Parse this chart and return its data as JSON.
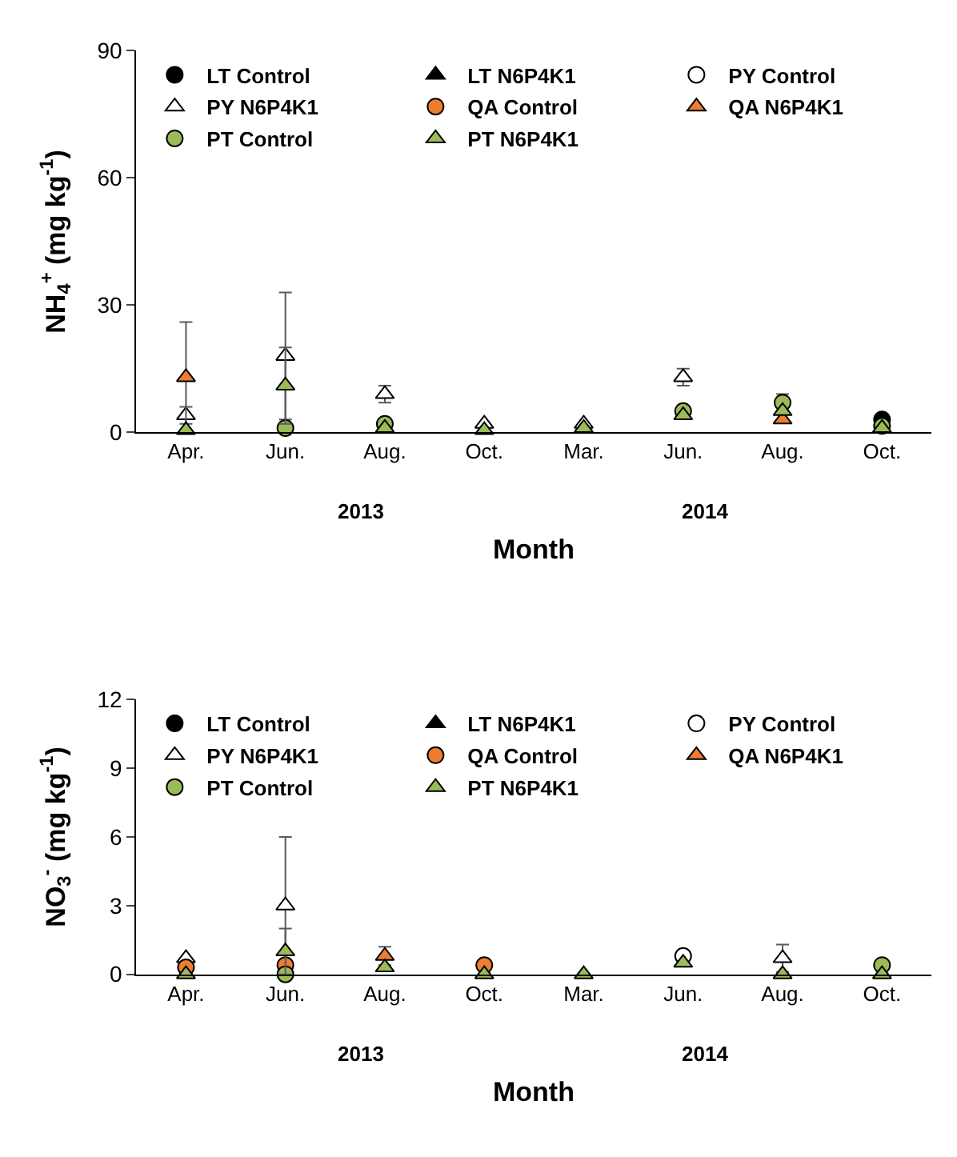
{
  "chart_data": [
    {
      "type": "scatter",
      "ylabel": "NH$_{4}$$^{+}$ (mg kg$^{-1}$)",
      "xlabel": "Month",
      "categories": [
        "Apr.",
        "Jun.",
        "Aug.",
        "Oct.",
        "Mar.",
        "Jun.",
        "Aug.",
        "Oct."
      ],
      "annotations": [
        "2013",
        "2014"
      ],
      "ylim": [
        0,
        90
      ],
      "yticks": [
        0,
        30,
        60,
        90
      ],
      "legend": "top",
      "series": [
        {
          "name": "LT Control",
          "color": "#000000",
          "marker": "circle",
          "values": [
            null,
            null,
            null,
            null,
            null,
            null,
            null,
            3
          ]
        },
        {
          "name": "LT N6P4K1",
          "color": "#000000",
          "marker": "triangle",
          "values": [
            null,
            null,
            null,
            null,
            null,
            null,
            null,
            null
          ]
        },
        {
          "name": "PY Control",
          "color": "#ffffff",
          "marker": "circle",
          "values": [
            null,
            null,
            null,
            null,
            null,
            null,
            null,
            null
          ]
        },
        {
          "name": "PY N6P4K1",
          "color": "#ffffff",
          "marker": "triangle",
          "values": [
            4,
            18,
            9,
            2,
            2,
            13,
            null,
            null
          ],
          "errors": [
            2,
            15,
            2,
            null,
            null,
            2,
            null,
            null
          ]
        },
        {
          "name": "QA Control",
          "color": "#ed7d31",
          "marker": "circle",
          "values": [
            null,
            null,
            null,
            null,
            null,
            null,
            null,
            null
          ]
        },
        {
          "name": "QA N6P4K1",
          "color": "#ed7d31",
          "marker": "triangle",
          "values": [
            13,
            null,
            null,
            null,
            null,
            null,
            3,
            null
          ],
          "errors": [
            13,
            null,
            null,
            null,
            null,
            null,
            null,
            null
          ]
        },
        {
          "name": "PT Control",
          "color": "#9bbb59",
          "marker": "circle",
          "values": [
            null,
            1,
            2,
            null,
            null,
            5,
            7,
            1.5
          ],
          "errors": [
            null,
            null,
            null,
            null,
            null,
            null,
            2,
            null
          ]
        },
        {
          "name": "PT N6P4K1",
          "color": "#9bbb59",
          "marker": "triangle",
          "values": [
            0.5,
            11,
            1,
            0.5,
            1,
            4,
            5,
            1
          ],
          "errors": [
            null,
            9,
            null,
            null,
            null,
            null,
            null,
            null
          ]
        }
      ]
    },
    {
      "type": "scatter",
      "ylabel": "NO$_{3}$$^{-}$ (mg kg$^{-1}$)",
      "xlabel": "Month",
      "categories": [
        "Apr.",
        "Jun.",
        "Aug.",
        "Oct.",
        "Mar.",
        "Jun.",
        "Aug.",
        "Oct."
      ],
      "annotations": [
        "2013",
        "2014"
      ],
      "ylim": [
        0,
        12
      ],
      "yticks": [
        0,
        3,
        6,
        9,
        12
      ],
      "legend": "top",
      "series": [
        {
          "name": "LT Control",
          "color": "#000000",
          "marker": "circle",
          "values": [
            null,
            null,
            null,
            null,
            null,
            null,
            null,
            null
          ]
        },
        {
          "name": "LT N6P4K1",
          "color": "#000000",
          "marker": "triangle",
          "values": [
            null,
            null,
            null,
            null,
            null,
            null,
            null,
            null
          ]
        },
        {
          "name": "PY Control",
          "color": "#ffffff",
          "marker": "circle",
          "values": [
            null,
            null,
            null,
            null,
            null,
            0.8,
            null,
            null
          ]
        },
        {
          "name": "PY N6P4K1",
          "color": "#ffffff",
          "marker": "triangle",
          "values": [
            0.7,
            3,
            null,
            null,
            null,
            null,
            0.7,
            null
          ],
          "errors": [
            null,
            3,
            null,
            null,
            null,
            null,
            0.6,
            null
          ]
        },
        {
          "name": "QA Control",
          "color": "#ed7d31",
          "marker": "circle",
          "values": [
            0.3,
            0.4,
            null,
            0.4,
            null,
            null,
            null,
            null
          ]
        },
        {
          "name": "QA N6P4K1",
          "color": "#ed7d31",
          "marker": "triangle",
          "values": [
            null,
            null,
            0.8,
            null,
            null,
            null,
            null,
            null
          ],
          "errors": [
            null,
            null,
            0.4,
            null,
            null,
            null,
            null,
            null
          ]
        },
        {
          "name": "PT Control",
          "color": "#9bbb59",
          "marker": "circle",
          "values": [
            null,
            0,
            null,
            null,
            null,
            null,
            null,
            0.4
          ]
        },
        {
          "name": "PT N6P4K1",
          "color": "#9bbb59",
          "marker": "triangle",
          "values": [
            0,
            1,
            0.3,
            0,
            0,
            0.5,
            0,
            0
          ],
          "errors": [
            null,
            1,
            null,
            null,
            null,
            null,
            null,
            null
          ]
        }
      ]
    }
  ]
}
